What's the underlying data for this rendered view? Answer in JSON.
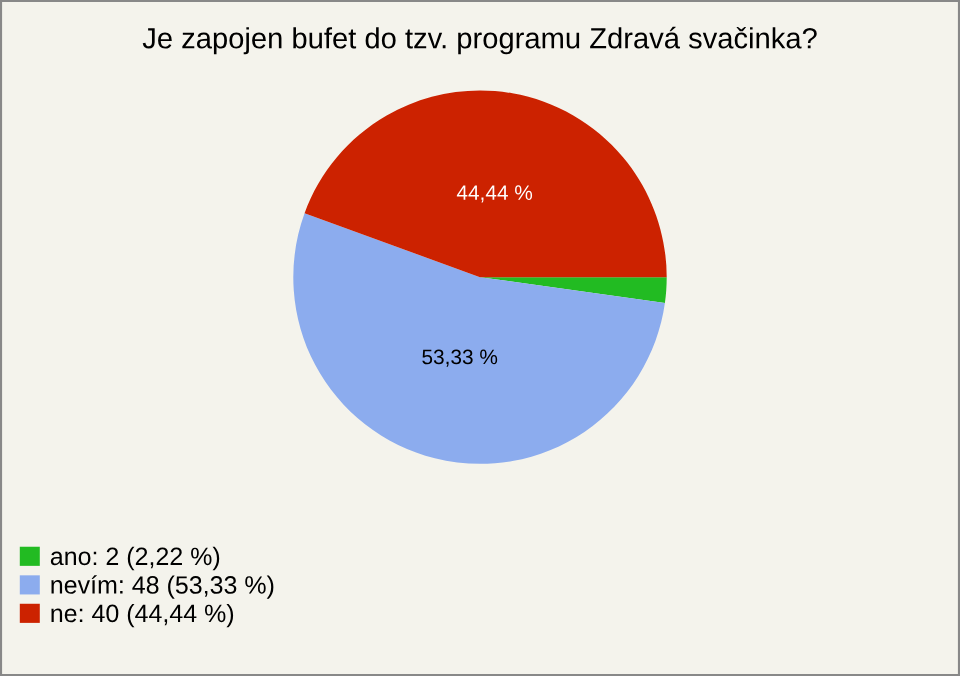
{
  "chart_data": {
    "type": "pie",
    "title": "Je zapojen bufet do tzv. programu Zdravá svačinka?",
    "categories": [
      "ano: 2 (2,22 %)",
      "nevím: 48 (53,33 %)",
      "ne: 40 (44,44 %)"
    ],
    "values": [
      2.22,
      53.33,
      44.44
    ],
    "colors": [
      "#22bb22",
      "#8cacee",
      "#cc2200"
    ],
    "value_labels": [
      null,
      "53,33 %",
      "44,44 %"
    ],
    "legend": "bottom left"
  }
}
